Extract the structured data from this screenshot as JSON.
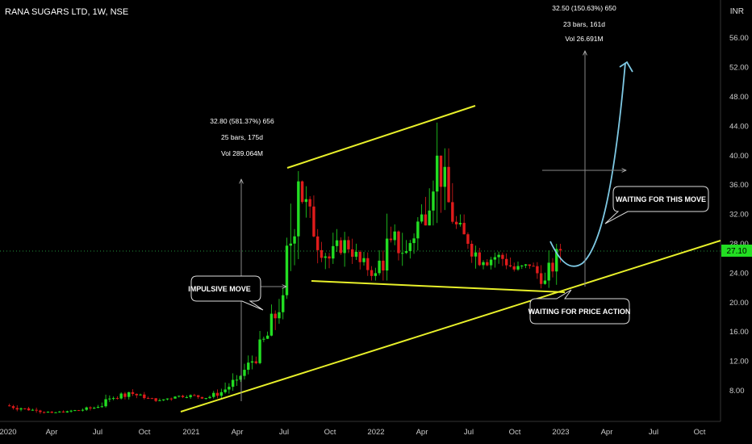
{
  "header": {
    "symbol": "RANA SUGARS LTD, 1W, NSE",
    "currency": "INR"
  },
  "price_axis": {
    "ticks": [
      "56.00",
      "52.00",
      "48.00",
      "44.00",
      "40.00",
      "36.00",
      "32.00",
      "28.00",
      "24.00",
      "20.00",
      "16.00",
      "12.00",
      "8.00"
    ],
    "current_price": "27.10"
  },
  "time_axis": {
    "ticks": [
      "2020",
      "Apr",
      "Jul",
      "Oct",
      "2021",
      "Apr",
      "Jul",
      "Oct",
      "2022",
      "Apr",
      "Jul",
      "Oct",
      "2023",
      "Apr",
      "Jul",
      "Oct"
    ]
  },
  "measure_1": {
    "line1": "32.80 (581.37%) 656",
    "line2": "25 bars, 175d",
    "line3": "Vol 289.064M"
  },
  "measure_2": {
    "line1": "32.50 (150.63%) 650",
    "line2": "23 bars, 161d",
    "line3": "Vol 26.691M"
  },
  "callouts": {
    "impulsive": "IMPULSIVE MOVE",
    "waiting_move": "WAITING FOR THIS MOVE",
    "waiting_price": "WAITING FOR PRICE ACTION"
  },
  "colors": {
    "bull": "#22dd22",
    "bear": "#e01b1b",
    "trendline": "#e8f02a",
    "projection": "#7ec8e3",
    "price_badge": "#22dd22",
    "grid_dotted": "#1f8f3a"
  },
  "chart_data": {
    "type": "candlestick",
    "timeframe": "1W",
    "ylim": [
      5,
      60
    ],
    "x_range": [
      "2020-01",
      "2023-12"
    ],
    "candles_monthly_approx": [
      {
        "t": "2020-01",
        "o": 6.0,
        "c": 5.6,
        "h": 6.4,
        "l": 5.2
      },
      {
        "t": "2020-02",
        "o": 5.6,
        "c": 5.3,
        "h": 5.9,
        "l": 5.0
      },
      {
        "t": "2020-03",
        "o": 5.3,
        "c": 5.0,
        "h": 5.5,
        "l": 4.8
      },
      {
        "t": "2020-04",
        "o": 5.0,
        "c": 5.2,
        "h": 5.4,
        "l": 4.9
      },
      {
        "t": "2020-05",
        "o": 5.2,
        "c": 5.4,
        "h": 5.7,
        "l": 5.0
      },
      {
        "t": "2020-06",
        "o": 5.4,
        "c": 5.8,
        "h": 6.2,
        "l": 5.2
      },
      {
        "t": "2020-07",
        "o": 5.8,
        "c": 7.0,
        "h": 7.6,
        "l": 5.7
      },
      {
        "t": "2020-08",
        "o": 7.0,
        "c": 7.8,
        "h": 8.6,
        "l": 6.8
      },
      {
        "t": "2020-09",
        "o": 7.8,
        "c": 7.0,
        "h": 8.2,
        "l": 6.8
      },
      {
        "t": "2020-10",
        "o": 7.0,
        "c": 6.7,
        "h": 7.2,
        "l": 6.4
      },
      {
        "t": "2020-11",
        "o": 6.7,
        "c": 7.2,
        "h": 7.6,
        "l": 6.5
      },
      {
        "t": "2020-12",
        "o": 7.2,
        "c": 7.4,
        "h": 7.8,
        "l": 6.9
      },
      {
        "t": "2021-01",
        "o": 7.4,
        "c": 7.0,
        "h": 7.6,
        "l": 6.8
      },
      {
        "t": "2021-02",
        "o": 7.0,
        "c": 7.8,
        "h": 8.4,
        "l": 6.9
      },
      {
        "t": "2021-03",
        "o": 7.8,
        "c": 9.5,
        "h": 10.4,
        "l": 7.6
      },
      {
        "t": "2021-04",
        "o": 9.5,
        "c": 12.0,
        "h": 12.8,
        "l": 9.2
      },
      {
        "t": "2021-05",
        "o": 12.0,
        "c": 15.5,
        "h": 16.6,
        "l": 11.6
      },
      {
        "t": "2021-06",
        "o": 15.5,
        "c": 21.0,
        "h": 22.0,
        "l": 15.0
      },
      {
        "t": "2021-07",
        "o": 21.0,
        "c": 36.5,
        "h": 37.9,
        "l": 20.5
      },
      {
        "t": "2021-08",
        "o": 36.5,
        "c": 29.0,
        "h": 37.0,
        "l": 26.0
      },
      {
        "t": "2021-09",
        "o": 29.0,
        "c": 26.0,
        "h": 30.0,
        "l": 24.0
      },
      {
        "t": "2021-10",
        "o": 26.0,
        "c": 28.5,
        "h": 30.0,
        "l": 24.5
      },
      {
        "t": "2021-11",
        "o": 28.5,
        "c": 25.5,
        "h": 29.0,
        "l": 24.5
      },
      {
        "t": "2021-12",
        "o": 25.5,
        "c": 24.0,
        "h": 27.0,
        "l": 23.0
      },
      {
        "t": "2022-01",
        "o": 24.0,
        "c": 28.5,
        "h": 33.5,
        "l": 23.0
      },
      {
        "t": "2022-02",
        "o": 28.5,
        "c": 27.0,
        "h": 33.0,
        "l": 25.0
      },
      {
        "t": "2022-03",
        "o": 27.0,
        "c": 32.0,
        "h": 34.0,
        "l": 26.0
      },
      {
        "t": "2022-04",
        "o": 32.0,
        "c": 40.0,
        "h": 44.5,
        "l": 30.5
      },
      {
        "t": "2022-05",
        "o": 40.0,
        "c": 31.0,
        "h": 41.0,
        "l": 29.0
      },
      {
        "t": "2022-06",
        "o": 31.0,
        "c": 28.0,
        "h": 32.0,
        "l": 26.0
      },
      {
        "t": "2022-07",
        "o": 28.0,
        "c": 25.5,
        "h": 29.5,
        "l": 24.5
      },
      {
        "t": "2022-08",
        "o": 25.5,
        "c": 26.5,
        "h": 28.0,
        "l": 24.5
      },
      {
        "t": "2022-09",
        "o": 26.5,
        "c": 24.5,
        "h": 27.0,
        "l": 23.5
      },
      {
        "t": "2022-10",
        "o": 24.5,
        "c": 25.0,
        "h": 26.0,
        "l": 23.5
      },
      {
        "t": "2022-11",
        "o": 25.0,
        "c": 23.0,
        "h": 25.5,
        "l": 21.5
      },
      {
        "t": "2022-12",
        "o": 23.0,
        "c": 27.1,
        "h": 28.0,
        "l": 22.0
      }
    ],
    "measures": [
      {
        "change": 32.8,
        "percent": 581.37,
        "ticks": 656,
        "bars": 25,
        "days": 175,
        "volume": "289.064M"
      },
      {
        "change": 32.5,
        "percent": 150.63,
        "ticks": 650,
        "bars": 23,
        "days": 161,
        "volume": "26.691M"
      }
    ],
    "last_price": 27.1
  }
}
